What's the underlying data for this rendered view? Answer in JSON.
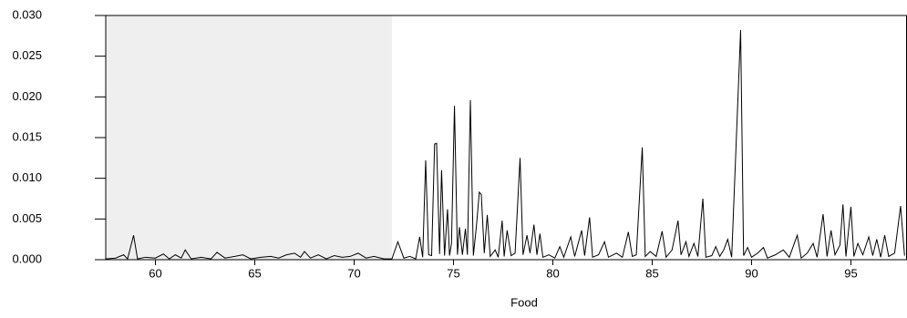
{
  "chart_data": {
    "type": "line",
    "x_label": "Food",
    "xlim": [
      57.5,
      97.8
    ],
    "ylim": [
      0,
      0.03
    ],
    "xticks": [
      60,
      65,
      70,
      75,
      80,
      85,
      90,
      95
    ],
    "yticks": [
      {
        "value": 0,
        "label": "0.000"
      },
      {
        "value": 0.005,
        "label": "0.005"
      },
      {
        "value": 0.01,
        "label": "0.010"
      },
      {
        "value": 0.015,
        "label": "0.015"
      },
      {
        "value": 0.02,
        "label": "0.020"
      },
      {
        "value": 0.025,
        "label": "0.025"
      },
      {
        "value": 0.03,
        "label": "0.030"
      }
    ],
    "shaded_x": [
      57.5,
      71.9
    ],
    "shade_color": "#efefef",
    "series": [
      {
        "color": "#000000",
        "x": [
          57.5,
          58.0,
          58.4,
          58.6,
          58.9,
          59.1,
          59.5,
          60.0,
          60.4,
          60.7,
          61.0,
          61.3,
          61.5,
          61.8,
          62.3,
          62.8,
          63.1,
          63.5,
          64.0,
          64.4,
          64.8,
          65.3,
          65.8,
          66.2,
          66.6,
          67.0,
          67.3,
          67.5,
          67.8,
          68.2,
          68.6,
          69.0,
          69.4,
          69.8,
          70.2,
          70.6,
          71.0,
          71.5,
          71.9,
          72.2,
          72.5,
          72.8,
          73.1,
          73.3,
          73.45,
          73.6,
          73.75,
          73.9,
          74.05,
          74.15,
          74.3,
          74.4,
          74.55,
          74.7,
          74.8,
          74.9,
          75.05,
          75.2,
          75.3,
          75.45,
          75.6,
          75.7,
          75.85,
          76.0,
          76.15,
          76.3,
          76.4,
          76.55,
          76.7,
          76.85,
          77.1,
          77.25,
          77.45,
          77.55,
          77.7,
          77.9,
          78.1,
          78.35,
          78.5,
          78.7,
          78.85,
          79.05,
          79.2,
          79.35,
          79.5,
          79.8,
          80.1,
          80.35,
          80.55,
          80.9,
          81.1,
          81.45,
          81.6,
          81.85,
          82.0,
          82.3,
          82.6,
          82.8,
          83.2,
          83.5,
          83.8,
          84.0,
          84.2,
          84.5,
          84.65,
          84.9,
          85.2,
          85.5,
          85.7,
          86.0,
          86.3,
          86.45,
          86.7,
          86.85,
          87.1,
          87.3,
          87.55,
          87.7,
          88.0,
          88.2,
          88.4,
          88.6,
          88.8,
          89.0,
          89.45,
          89.6,
          89.8,
          90.0,
          90.3,
          90.6,
          90.8,
          91.2,
          91.6,
          91.9,
          92.3,
          92.5,
          92.8,
          93.1,
          93.3,
          93.6,
          93.8,
          94.0,
          94.2,
          94.45,
          94.6,
          94.75,
          95.0,
          95.15,
          95.35,
          95.6,
          95.9,
          96.1,
          96.3,
          96.5,
          96.7,
          96.9,
          97.2,
          97.5,
          97.7
        ],
        "values": [
          0.0001,
          0.0002,
          0.0006,
          0.0001,
          0.003,
          0.0001,
          0.0003,
          0.0002,
          0.0007,
          0.0001,
          0.0006,
          0.0002,
          0.0012,
          0.0001,
          0.0003,
          0.0001,
          0.0009,
          0.0002,
          0.0004,
          0.0006,
          0.0001,
          0.0003,
          0.0004,
          0.0002,
          0.0006,
          0.0008,
          0.0003,
          0.001,
          0.0002,
          0.0006,
          0.0001,
          0.0005,
          0.0003,
          0.0004,
          0.0008,
          0.0002,
          0.0004,
          0.0001,
          0.0001,
          0.0022,
          0.0002,
          0.0004,
          0.0001,
          0.0028,
          0.0003,
          0.0122,
          0.0006,
          0.0005,
          0.0142,
          0.0143,
          0.0007,
          0.011,
          0.0005,
          0.0062,
          0.0005,
          0.002,
          0.0189,
          0.0006,
          0.004,
          0.0006,
          0.0038,
          0.0006,
          0.0196,
          0.0005,
          0.004,
          0.0083,
          0.008,
          0.0008,
          0.0055,
          0.0004,
          0.0012,
          0.0003,
          0.0048,
          0.0004,
          0.0036,
          0.0005,
          0.0008,
          0.0125,
          0.0006,
          0.003,
          0.0008,
          0.0043,
          0.0006,
          0.0032,
          0.0003,
          0.0006,
          0.0002,
          0.0016,
          0.0003,
          0.0028,
          0.0004,
          0.0036,
          0.0005,
          0.0052,
          0.0003,
          0.0006,
          0.0022,
          0.0003,
          0.0008,
          0.0003,
          0.0034,
          0.0004,
          0.0006,
          0.0138,
          0.0004,
          0.001,
          0.0004,
          0.0035,
          0.0003,
          0.0012,
          0.0048,
          0.0006,
          0.0022,
          0.0004,
          0.002,
          0.0004,
          0.0075,
          0.0003,
          0.0005,
          0.0016,
          0.0004,
          0.0012,
          0.0025,
          0.0003,
          0.0282,
          0.0005,
          0.0015,
          0.0003,
          0.0008,
          0.0015,
          0.0002,
          0.0006,
          0.0012,
          0.0003,
          0.003,
          0.0002,
          0.0008,
          0.002,
          0.0003,
          0.0056,
          0.0004,
          0.0036,
          0.0006,
          0.0018,
          0.0068,
          0.0004,
          0.0065,
          0.0004,
          0.002,
          0.0006,
          0.0028,
          0.0005,
          0.0025,
          0.0003,
          0.003,
          0.0004,
          0.0008,
          0.0066,
          0.0005
        ]
      }
    ]
  }
}
